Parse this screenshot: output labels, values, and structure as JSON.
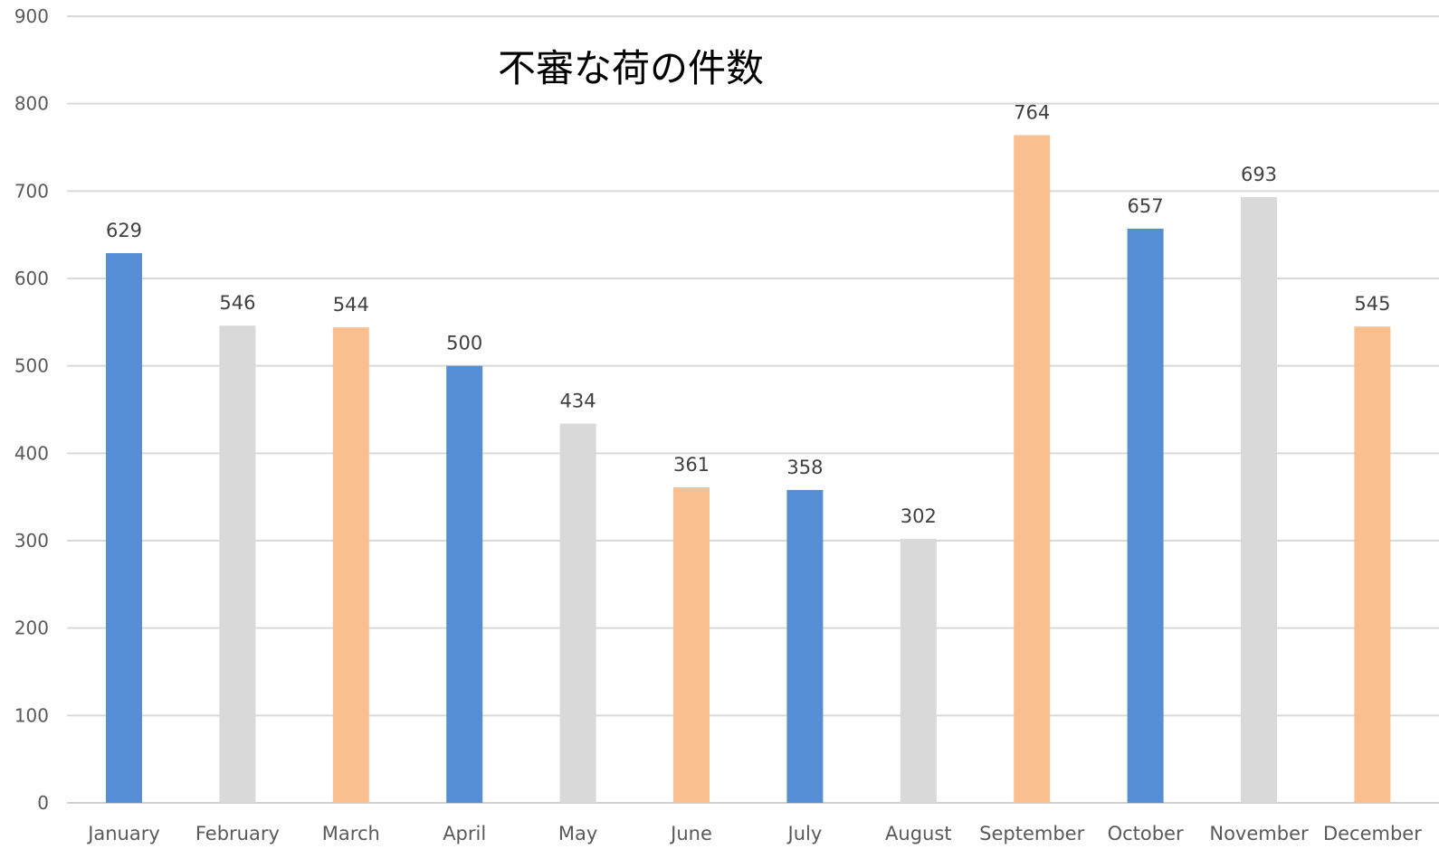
{
  "chart_data": {
    "type": "bar",
    "title": "不審な荷の件数",
    "categories": [
      "January",
      "February",
      "March",
      "April",
      "May",
      "June",
      "July",
      "August",
      "September",
      "October",
      "November",
      "December"
    ],
    "values": [
      629,
      546,
      544,
      500,
      434,
      361,
      358,
      302,
      764,
      657,
      693,
      545
    ],
    "bar_colors": [
      "#558ed5",
      "#d9d9d9",
      "#f9bf8f",
      "#558ed5",
      "#d9d9d9",
      "#f9bf8f",
      "#558ed5",
      "#d9d9d9",
      "#f9bf8f",
      "#558ed5",
      "#d9d9d9",
      "#f9bf8f"
    ],
    "ylim": [
      0,
      900
    ],
    "yticks": [
      0,
      100,
      200,
      300,
      400,
      500,
      600,
      700,
      800,
      900
    ],
    "xlabel": "",
    "ylabel": "",
    "grid": true,
    "legend": "none",
    "data_labels": true
  }
}
